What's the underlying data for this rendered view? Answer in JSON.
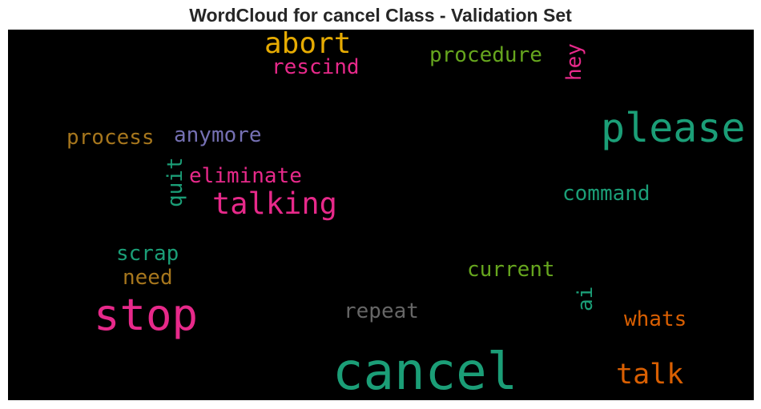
{
  "title": "WordCloud for cancel Class - Validation Set",
  "words": [
    {
      "text": "cancel",
      "color": "#1b9e77"
    },
    {
      "text": "stop",
      "color": "#e7298a"
    },
    {
      "text": "please",
      "color": "#1b9e77"
    },
    {
      "text": "talking",
      "color": "#e7298a"
    },
    {
      "text": "abort",
      "color": "#e6ab02"
    },
    {
      "text": "talk",
      "color": "#d95f02"
    },
    {
      "text": "rescind",
      "color": "#e7298a"
    },
    {
      "text": "procedure",
      "color": "#66a61e"
    },
    {
      "text": "hey",
      "color": "#e7298a"
    },
    {
      "text": "process",
      "color": "#a6761d"
    },
    {
      "text": "anymore",
      "color": "#7570b3"
    },
    {
      "text": "quit",
      "color": "#1b9e77"
    },
    {
      "text": "eliminate",
      "color": "#e7298a"
    },
    {
      "text": "command",
      "color": "#1b9e77"
    },
    {
      "text": "scrap",
      "color": "#1b9e77"
    },
    {
      "text": "need",
      "color": "#a6761d"
    },
    {
      "text": "current",
      "color": "#66a61e"
    },
    {
      "text": "repeat",
      "color": "#666666"
    },
    {
      "text": "ai",
      "color": "#1b9e77"
    },
    {
      "text": "whats",
      "color": "#d95f02"
    }
  ]
}
